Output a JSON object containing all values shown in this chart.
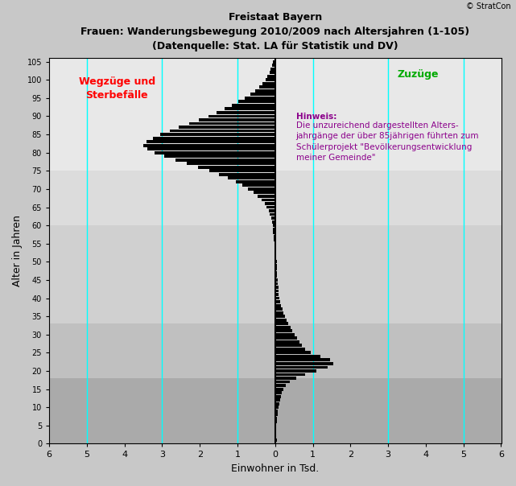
{
  "title_line1": "Freistaat Bayern",
  "title_line2": "Frauen: Wanderungsbewegung 2010/2009 nach Altersjahren (1-105)",
  "title_line3": "(Datenquelle: Stat. LA für Statistik und DV)",
  "xlabel": "Einwohner in Tsd.",
  "ylabel": "Alter in Jahren",
  "xlim": [
    -6,
    6
  ],
  "ylim": [
    0,
    106
  ],
  "copyright": "© StratCon",
  "left_label": "Wegzüge und\nSterbefälle",
  "right_label": "Zuzüge",
  "hinweis_title": "Hinweis:",
  "hinweis_text": "Die unzureichend dargestellten Alters-\njahrgänge der über 85jährigen führten zum\nSchülerprojekt \"Bevölkerungsentwicklung\nmeiner Gemeinde\"",
  "xticks": [
    -6,
    -5,
    -4,
    -3,
    -2,
    -1,
    0,
    1,
    2,
    3,
    4,
    5,
    6
  ],
  "yticks": [
    0,
    5,
    10,
    15,
    20,
    25,
    30,
    35,
    40,
    45,
    50,
    55,
    60,
    65,
    70,
    75,
    80,
    85,
    90,
    95,
    100,
    105
  ],
  "cyan_lines_x": [
    -5,
    -3,
    -1,
    1,
    3,
    5
  ],
  "bg_bands": [
    {
      "ymin": 0,
      "ymax": 18,
      "color": "#aaaaaa"
    },
    {
      "ymin": 18,
      "ymax": 33,
      "color": "#c0c0c0"
    },
    {
      "ymin": 33,
      "ymax": 60,
      "color": "#d0d0d0"
    },
    {
      "ymin": 60,
      "ymax": 75,
      "color": "#dcdcdc"
    },
    {
      "ymin": 75,
      "ymax": 106,
      "color": "#e8e8e8"
    }
  ],
  "outer_bg": "#c8c8c8",
  "values": [
    0.04,
    0.03,
    0.03,
    0.03,
    0.03,
    0.04,
    0.05,
    0.06,
    0.07,
    0.09,
    0.11,
    0.13,
    0.15,
    0.18,
    0.22,
    0.28,
    0.38,
    0.55,
    0.8,
    1.1,
    1.4,
    1.55,
    1.45,
    1.2,
    0.95,
    0.8,
    0.72,
    0.65,
    0.58,
    0.52,
    0.46,
    0.4,
    0.35,
    0.3,
    0.26,
    0.22,
    0.19,
    0.16,
    0.14,
    0.12,
    0.1,
    0.09,
    0.08,
    0.07,
    0.06,
    0.05,
    0.05,
    0.04,
    0.04,
    0.04,
    0.03,
    0.03,
    0.03,
    0.03,
    0.03,
    -0.03,
    -0.04,
    -0.05,
    -0.06,
    -0.07,
    -0.09,
    -0.11,
    -0.14,
    -0.17,
    -0.22,
    -0.28,
    -0.36,
    -0.46,
    -0.58,
    -0.72,
    -0.88,
    -1.05,
    -1.25,
    -1.5,
    -1.75,
    -2.05,
    -2.35,
    -2.65,
    -2.95,
    -3.2,
    -3.4,
    -3.5,
    -3.42,
    -3.25,
    -3.05,
    -2.8,
    -2.55,
    -2.28,
    -2.02,
    -1.78,
    -1.55,
    -1.35,
    -1.15,
    -0.97,
    -0.8,
    -0.65,
    -0.52,
    -0.42,
    -0.33,
    -0.26,
    -0.2,
    -0.15,
    -0.12,
    -0.09,
    -0.06
  ]
}
